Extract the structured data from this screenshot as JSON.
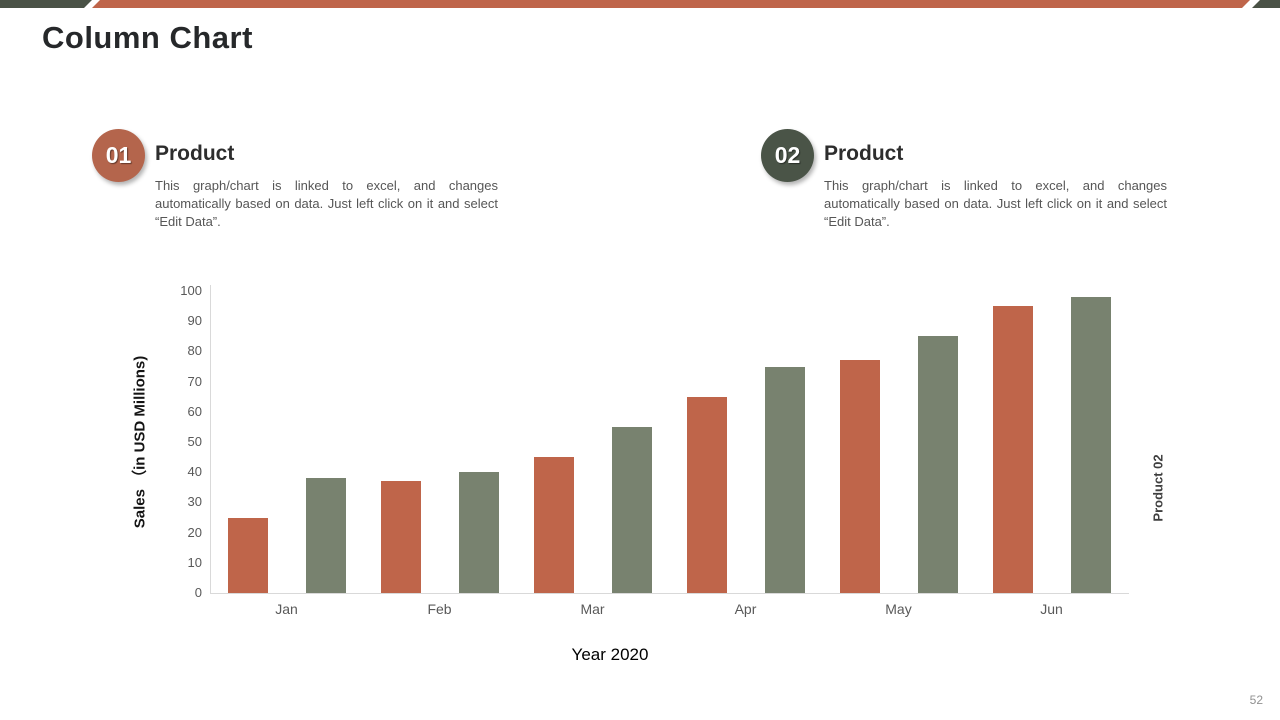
{
  "header": {
    "title": "Column Chart",
    "accent_green": "#4a5246",
    "accent_orange": "#bf654a"
  },
  "sections": [
    {
      "badge": "01",
      "badge_color": "#b4654c",
      "heading": "Product",
      "description": "This graph/chart is linked to excel, and changes automatically based on data. Just left click on it and select “Edit Data”."
    },
    {
      "badge": "02",
      "badge_color": "#4a5447",
      "heading": "Product",
      "description": "This graph/chart is linked to excel, and changes automatically based on data. Just left click on it and select “Edit Data”."
    }
  ],
  "chart_data": {
    "type": "bar",
    "title": "",
    "categories": [
      "Jan",
      "Feb",
      "Mar",
      "Apr",
      "May",
      "Jun"
    ],
    "series": [
      {
        "name": "Product 01",
        "color": "#bf654a",
        "values": [
          25,
          37,
          45,
          65,
          77,
          95
        ]
      },
      {
        "name": "Product 02",
        "color": "#78826f",
        "values": [
          38,
          40,
          55,
          75,
          85,
          98
        ]
      }
    ],
    "xlabel": "Year 2020",
    "ylabel": "Sales （in USD Millions)",
    "right_label": "Product 02",
    "ylim": [
      0,
      100
    ],
    "ytick_step": 10,
    "grid": false,
    "legend": "none"
  },
  "footer": {
    "page_number": "52"
  }
}
